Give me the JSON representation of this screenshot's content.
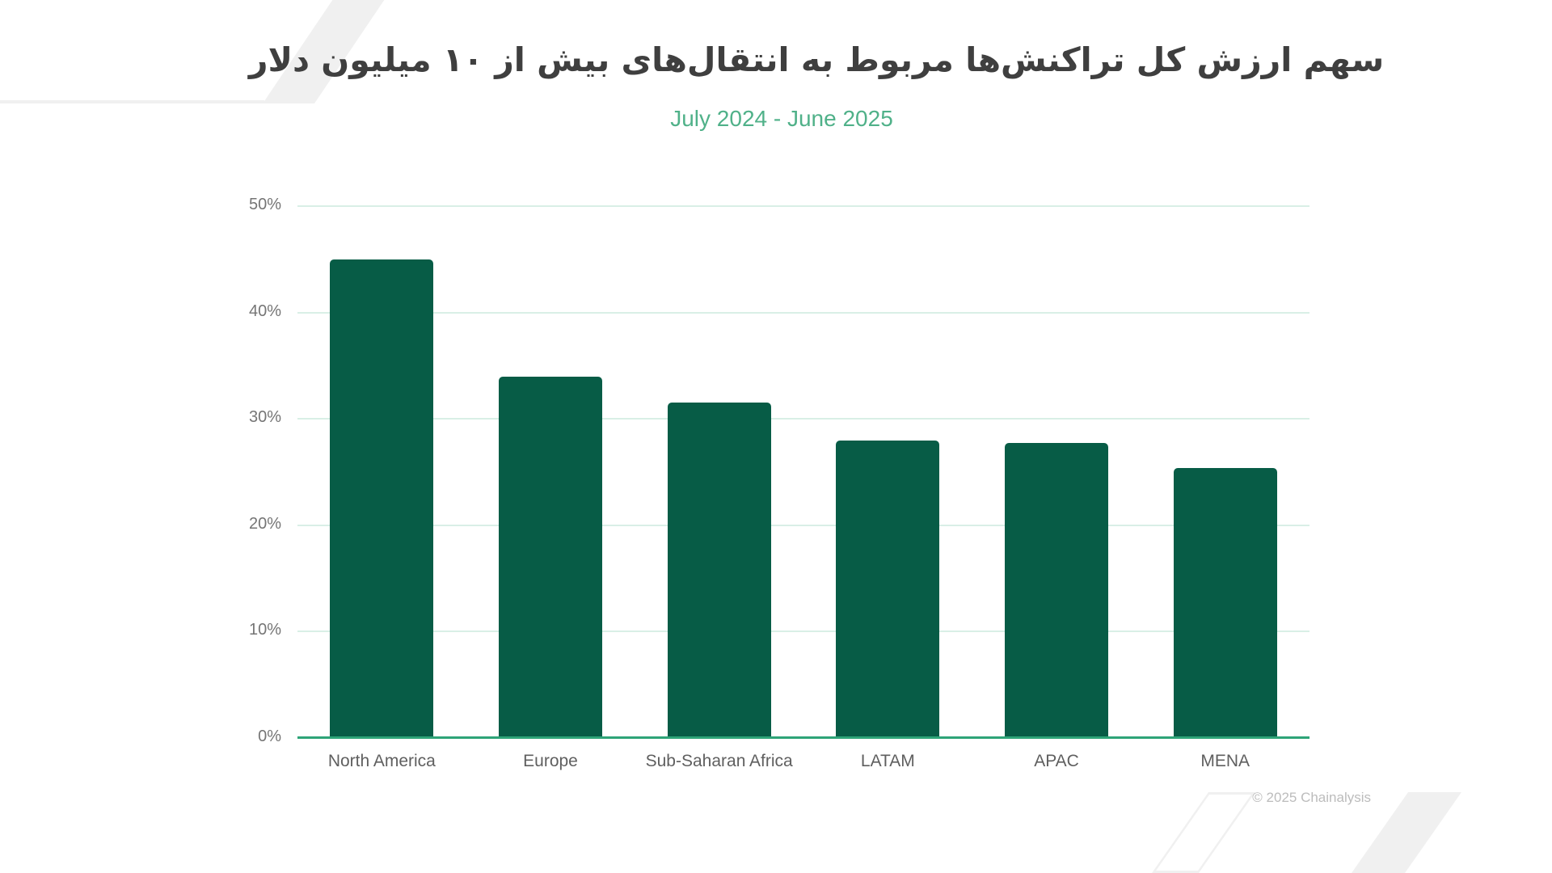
{
  "page": {
    "title": "سهم ارزش کل تراکنش‌ها مربوط به انتقال‌های بیش از ۱۰ میلیون دلار",
    "subtitle": "July 2024 - June 2025",
    "copyright": "© 2025 Chainalysis"
  },
  "colors": {
    "bar": "#075C46",
    "axis_line": "#2EA478",
    "gridline": "#D9EFE6",
    "title_text": "#3F3F3F",
    "subtitle_text": "#50B189",
    "tick_label": "#757575",
    "category_label": "#5F5F5F",
    "copyright_text": "#BCBCBC",
    "decoration": "#F0F0F0"
  },
  "chart_data": {
    "type": "bar",
    "title": "سهم ارزش کل تراکنش‌ها مربوط به انتقال‌های بیش از ۱۰ میلیون دلار",
    "subtitle": "July 2024 - June 2025",
    "categories": [
      "North America",
      "Europe",
      "Sub-Saharan Africa",
      "LATAM",
      "APAC",
      "MENA"
    ],
    "values": [
      45,
      34,
      31.5,
      28,
      27.7,
      25.4
    ],
    "unit": "%",
    "xlabel": "",
    "ylabel": "",
    "ylim": [
      0,
      50
    ],
    "ytick_interval": 10,
    "ytick_labels": [
      "0%",
      "10%",
      "20%",
      "30%",
      "40%",
      "50%"
    ],
    "grid": true,
    "legend": false,
    "bar_color": "#075C46"
  }
}
